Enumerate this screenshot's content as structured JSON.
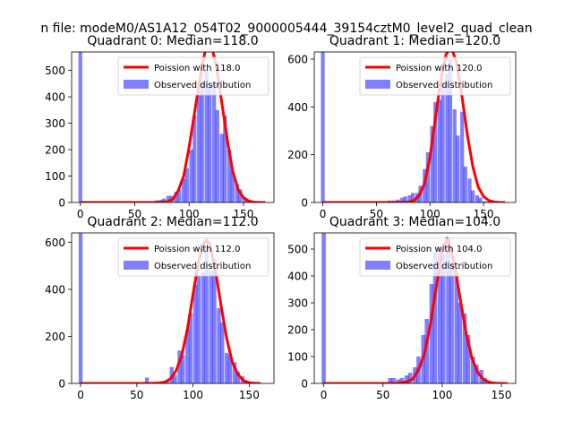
{
  "suptitle": "n file: modeM0/AS1A12_054T02_9000005444_39154cztM0_level2_quad_clean",
  "colors": {
    "observed": "#0000ff",
    "observed_alpha": 0.5,
    "poisson": "#ff0000",
    "axes": "#000000",
    "legend_border": "#cccccc"
  },
  "chart_data": [
    {
      "type": "bar",
      "title": "Quadrant 0: Median=118.0",
      "median": 118.0,
      "xlim": [
        -8,
        178
      ],
      "ylim": [
        0,
        570
      ],
      "xticks": [
        0,
        50,
        100,
        150
      ],
      "yticks": [
        0,
        100,
        200,
        300,
        400,
        500
      ],
      "bin_width": 3.5,
      "observed": {
        "name": "Observed distribution",
        "x": [
          0,
          66,
          70,
          74,
          77,
          81,
          84,
          88,
          91,
          95,
          98,
          102,
          105,
          109,
          112,
          116,
          119,
          123,
          126,
          130,
          133,
          137,
          140,
          144,
          147,
          151,
          154,
          158,
          161
        ],
        "values": [
          570,
          5,
          8,
          10,
          15,
          25,
          25,
          40,
          50,
          90,
          130,
          200,
          330,
          420,
          460,
          500,
          445,
          450,
          350,
          260,
          330,
          200,
          120,
          70,
          50,
          20,
          8,
          5,
          3
        ]
      },
      "poisson": {
        "name": "Poission with 118.0",
        "lambda": 118.0,
        "x": [
          0,
          10,
          20,
          30,
          40,
          50,
          60,
          70,
          80,
          85,
          90,
          95,
          100,
          105,
          110,
          115,
          118,
          120,
          125,
          130,
          135,
          140,
          145,
          150,
          155,
          160,
          165,
          170
        ],
        "values": [
          0,
          0,
          0,
          0,
          0,
          0,
          0,
          0,
          3,
          12,
          45,
          100,
          210,
          340,
          470,
          580,
          610,
          600,
          520,
          380,
          240,
          120,
          50,
          18,
          5,
          1,
          0,
          0
        ]
      }
    },
    {
      "type": "bar",
      "title": "Quadrant 1: Median=120.0",
      "median": 120.0,
      "xlim": [
        -8,
        180
      ],
      "ylim": [
        0,
        630
      ],
      "xticks": [
        0,
        50,
        100,
        150
      ],
      "yticks": [
        0,
        200,
        400,
        600
      ],
      "bin_width": 3.5,
      "observed": {
        "name": "Observed distribution",
        "x": [
          0,
          62,
          66,
          70,
          74,
          77,
          81,
          84,
          88,
          91,
          95,
          98,
          102,
          105,
          109,
          112,
          116,
          119,
          123,
          126,
          130,
          133,
          137,
          140,
          144,
          147,
          151,
          154
        ],
        "values": [
          630,
          8,
          8,
          12,
          20,
          25,
          30,
          40,
          40,
          70,
          140,
          210,
          320,
          420,
          430,
          500,
          540,
          600,
          390,
          280,
          380,
          150,
          100,
          50,
          30,
          20,
          5,
          3
        ]
      },
      "poisson": {
        "name": "Poission with 120.0",
        "lambda": 120.0,
        "x": [
          0,
          10,
          20,
          30,
          40,
          50,
          60,
          70,
          80,
          85,
          90,
          95,
          100,
          105,
          110,
          115,
          120,
          125,
          130,
          135,
          140,
          145,
          150,
          155,
          160,
          165,
          170
        ],
        "values": [
          0,
          0,
          0,
          0,
          0,
          0,
          0,
          0,
          2,
          8,
          30,
          80,
          190,
          350,
          510,
          620,
          650,
          580,
          440,
          280,
          150,
          65,
          25,
          8,
          2,
          0,
          0
        ]
      }
    },
    {
      "type": "bar",
      "title": "Quadrant 2: Median=112.0",
      "median": 112.0,
      "xlim": [
        -8,
        172
      ],
      "ylim": [
        0,
        640
      ],
      "xticks": [
        0,
        50,
        100,
        150
      ],
      "yticks": [
        0,
        200,
        400,
        600
      ],
      "bin_width": 3.5,
      "observed": {
        "name": "Observed distribution",
        "x": [
          0,
          59,
          70,
          74,
          77,
          81,
          84,
          88,
          91,
          95,
          98,
          102,
          105,
          109,
          112,
          116,
          119,
          123,
          126,
          130,
          133,
          137,
          140,
          144,
          147,
          151,
          154
        ],
        "values": [
          640,
          25,
          5,
          10,
          15,
          70,
          35,
          140,
          120,
          230,
          300,
          420,
          460,
          470,
          580,
          480,
          530,
          320,
          260,
          130,
          120,
          90,
          50,
          30,
          10,
          5,
          3
        ]
      },
      "poisson": {
        "name": "Poission with 112.0",
        "lambda": 112.0,
        "x": [
          0,
          10,
          20,
          30,
          40,
          50,
          60,
          70,
          75,
          80,
          85,
          90,
          95,
          100,
          105,
          110,
          112,
          115,
          120,
          125,
          130,
          135,
          140,
          145,
          150,
          155,
          160
        ],
        "values": [
          0,
          0,
          0,
          0,
          0,
          0,
          0,
          2,
          6,
          20,
          55,
          120,
          230,
          380,
          520,
          600,
          610,
          590,
          480,
          330,
          190,
          90,
          38,
          12,
          3,
          1,
          0
        ]
      }
    },
    {
      "type": "bar",
      "title": "Quadrant 3: Median=104.0",
      "median": 104.0,
      "xlim": [
        -8,
        162
      ],
      "ylim": [
        0,
        560
      ],
      "xticks": [
        0,
        50,
        100,
        150
      ],
      "yticks": [
        0,
        100,
        200,
        300,
        400,
        500
      ],
      "bin_width": 3.5,
      "observed": {
        "name": "Observed distribution",
        "x": [
          0,
          52,
          56,
          59,
          63,
          66,
          70,
          73,
          77,
          80,
          84,
          87,
          91,
          94,
          98,
          101,
          105,
          108,
          112,
          115,
          119,
          122,
          126,
          129,
          133,
          136,
          140
        ],
        "values": [
          560,
          5,
          20,
          20,
          15,
          20,
          30,
          40,
          60,
          100,
          180,
          240,
          370,
          490,
          510,
          480,
          540,
          450,
          410,
          300,
          260,
          180,
          100,
          70,
          50,
          20,
          8
        ]
      },
      "poisson": {
        "name": "Poission with 104.0",
        "lambda": 104.0,
        "x": [
          0,
          10,
          20,
          30,
          40,
          50,
          60,
          65,
          70,
          75,
          80,
          85,
          90,
          95,
          100,
          104,
          105,
          110,
          115,
          120,
          125,
          130,
          135,
          140,
          145,
          150,
          155
        ],
        "values": [
          0,
          0,
          0,
          0,
          0,
          0,
          0,
          2,
          6,
          16,
          50,
          110,
          220,
          360,
          490,
          540,
          535,
          450,
          320,
          190,
          95,
          40,
          14,
          4,
          1,
          0,
          0
        ]
      }
    }
  ]
}
